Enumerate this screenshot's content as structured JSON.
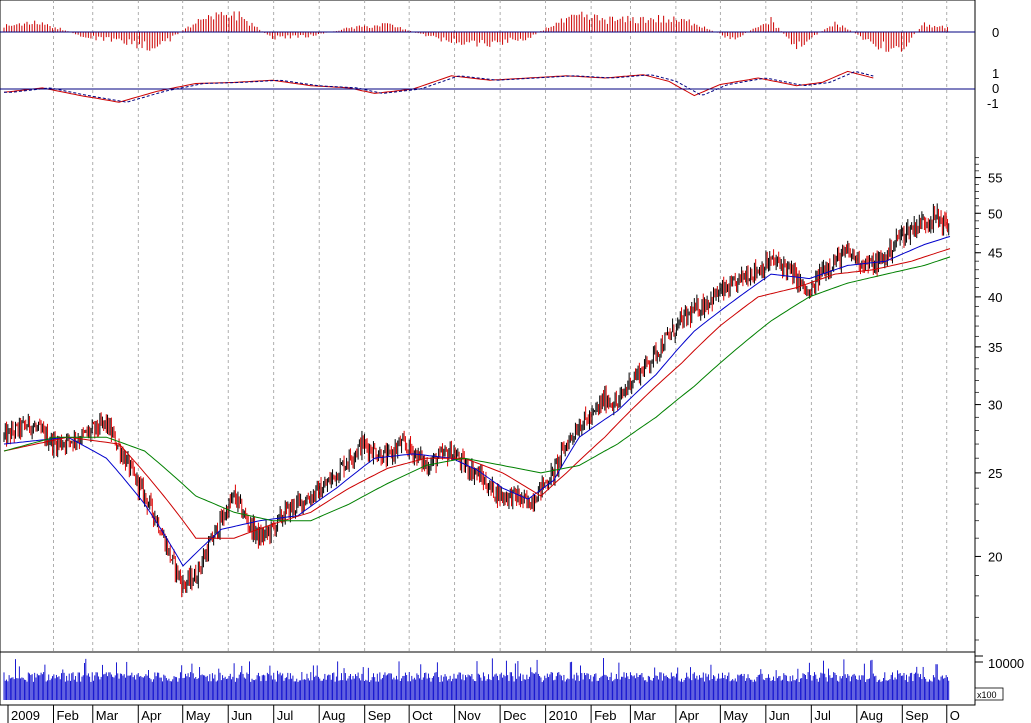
{
  "chart_data": [
    {
      "id": "price",
      "type": "candlestick",
      "ylabel": "",
      "yscale": "log",
      "ylim": [
        16,
        60
      ],
      "yticks": [
        20,
        25,
        30,
        35,
        40,
        45,
        50,
        55
      ],
      "x_labels": [
        "2009",
        "Feb",
        "Mar",
        "Apr",
        "May",
        "Jun",
        "Jul",
        "Aug",
        "Sep",
        "Oct",
        "Nov",
        "Dec",
        "2010",
        "Feb",
        "Mar",
        "Apr",
        "May",
        "Jun",
        "Jul",
        "Aug",
        "Sep",
        "O"
      ],
      "close_path": [
        [
          0,
          27.5
        ],
        [
          4,
          28.5
        ],
        [
          8,
          27.0
        ],
        [
          12,
          27.5
        ],
        [
          16,
          28.5
        ],
        [
          20,
          25.0
        ],
        [
          24,
          22.0
        ],
        [
          26,
          20.0
        ],
        [
          28,
          18.5
        ],
        [
          30,
          19.0
        ],
        [
          32,
          20.5
        ],
        [
          34,
          22.0
        ],
        [
          36,
          23.5
        ],
        [
          38,
          22.0
        ],
        [
          40,
          21.0
        ],
        [
          42,
          21.5
        ],
        [
          44,
          22.5
        ],
        [
          46,
          23.0
        ],
        [
          48,
          23.5
        ],
        [
          50,
          24.0
        ],
        [
          52,
          25.0
        ],
        [
          54,
          26.0
        ],
        [
          56,
          27.0
        ],
        [
          58,
          26.5
        ],
        [
          60,
          26.0
        ],
        [
          62,
          27.0
        ],
        [
          64,
          26.5
        ],
        [
          66,
          25.5
        ],
        [
          68,
          26.0
        ],
        [
          70,
          26.5
        ],
        [
          72,
          25.5
        ],
        [
          74,
          25.0
        ],
        [
          76,
          24.0
        ],
        [
          78,
          23.5
        ],
        [
          80,
          23.5
        ],
        [
          82,
          23.0
        ],
        [
          84,
          24.0
        ],
        [
          86,
          25.0
        ],
        [
          88,
          27.0
        ],
        [
          90,
          28.5
        ],
        [
          92,
          29.0
        ],
        [
          94,
          30.5
        ],
        [
          96,
          30.0
        ],
        [
          98,
          32.0
        ],
        [
          100,
          33.0
        ],
        [
          102,
          34.5
        ],
        [
          104,
          36.0
        ],
        [
          106,
          37.5
        ],
        [
          108,
          38.5
        ],
        [
          110,
          39.5
        ],
        [
          112,
          40.5
        ],
        [
          114,
          41.0
        ],
        [
          116,
          42.5
        ],
        [
          118,
          43.0
        ],
        [
          120,
          44.0
        ],
        [
          122,
          43.5
        ],
        [
          124,
          42.0
        ],
        [
          126,
          40.0
        ],
        [
          128,
          43.0
        ],
        [
          130,
          44.0
        ],
        [
          132,
          45.0
        ],
        [
          134,
          44.0
        ],
        [
          136,
          43.5
        ],
        [
          138,
          44.5
        ],
        [
          140,
          47.0
        ],
        [
          142,
          48.0
        ],
        [
          144,
          49.0
        ],
        [
          146,
          49.5
        ],
        [
          148,
          48.0
        ]
      ],
      "n_weeks": 148,
      "moving_averages": [
        {
          "color": "#0000cc",
          "points": [
            [
              0,
              27.0
            ],
            [
              10,
              27.5
            ],
            [
              16,
              26.0
            ],
            [
              22,
              23.0
            ],
            [
              28,
              19.5
            ],
            [
              34,
              21.5
            ],
            [
              40,
              22.0
            ],
            [
              46,
              22.3
            ],
            [
              52,
              24.0
            ],
            [
              58,
              26.0
            ],
            [
              64,
              26.3
            ],
            [
              70,
              26.0
            ],
            [
              74,
              25.2
            ],
            [
              78,
              24.0
            ],
            [
              82,
              23.3
            ],
            [
              86,
              24.5
            ],
            [
              90,
              27.5
            ],
            [
              96,
              29.5
            ],
            [
              102,
              32.5
            ],
            [
              108,
              36.5
            ],
            [
              114,
              39.5
            ],
            [
              120,
              42.5
            ],
            [
              126,
              42.0
            ],
            [
              132,
              43.5
            ],
            [
              138,
              44.0
            ],
            [
              144,
              46.0
            ],
            [
              148,
              47.0
            ]
          ]
        },
        {
          "color": "#cc0000",
          "points": [
            [
              0,
              26.5
            ],
            [
              10,
              27.5
            ],
            [
              18,
              27.0
            ],
            [
              24,
              24.0
            ],
            [
              30,
              21.0
            ],
            [
              36,
              21.0
            ],
            [
              42,
              21.8
            ],
            [
              48,
              22.5
            ],
            [
              54,
              24.0
            ],
            [
              60,
              25.3
            ],
            [
              66,
              26.0
            ],
            [
              72,
              26.0
            ],
            [
              78,
              25.0
            ],
            [
              84,
              23.5
            ],
            [
              88,
              25.0
            ],
            [
              94,
              27.5
            ],
            [
              100,
              30.5
            ],
            [
              106,
              33.5
            ],
            [
              112,
              37.0
            ],
            [
              118,
              40.0
            ],
            [
              124,
              41.0
            ],
            [
              130,
              42.5
            ],
            [
              136,
              43.0
            ],
            [
              142,
              44.0
            ],
            [
              146,
              45.0
            ],
            [
              148,
              45.5
            ]
          ]
        },
        {
          "color": "#008000",
          "points": [
            [
              0,
              26.5
            ],
            [
              8,
              27.5
            ],
            [
              16,
              27.5
            ],
            [
              22,
              26.5
            ],
            [
              30,
              23.5
            ],
            [
              36,
              22.5
            ],
            [
              42,
              22.0
            ],
            [
              48,
              22.0
            ],
            [
              54,
              23.0
            ],
            [
              60,
              24.3
            ],
            [
              66,
              25.5
            ],
            [
              72,
              26.0
            ],
            [
              78,
              25.5
            ],
            [
              84,
              25.0
            ],
            [
              90,
              25.5
            ],
            [
              96,
              27.0
            ],
            [
              102,
              29.0
            ],
            [
              108,
              31.5
            ],
            [
              114,
              34.5
            ],
            [
              120,
              37.5
            ],
            [
              126,
              40.0
            ],
            [
              132,
              41.5
            ],
            [
              138,
              42.5
            ],
            [
              144,
              43.5
            ],
            [
              148,
              44.5
            ]
          ]
        }
      ]
    },
    {
      "id": "oscillator-top",
      "type": "bar",
      "zero_label": "0",
      "values_path": [
        [
          0,
          3
        ],
        [
          6,
          5
        ],
        [
          12,
          -2
        ],
        [
          18,
          -5
        ],
        [
          24,
          -8
        ],
        [
          30,
          5
        ],
        [
          36,
          10
        ],
        [
          42,
          -3
        ],
        [
          48,
          -2
        ],
        [
          54,
          2
        ],
        [
          60,
          4
        ],
        [
          64,
          0
        ],
        [
          70,
          -5
        ],
        [
          76,
          -6
        ],
        [
          82,
          -3
        ],
        [
          86,
          4
        ],
        [
          90,
          8
        ],
        [
          96,
          6
        ],
        [
          102,
          7
        ],
        [
          108,
          5
        ],
        [
          114,
          -4
        ],
        [
          120,
          6
        ],
        [
          124,
          -8
        ],
        [
          130,
          5
        ],
        [
          136,
          -6
        ],
        [
          140,
          -10
        ],
        [
          144,
          4
        ],
        [
          148,
          2
        ]
      ]
    },
    {
      "id": "oscillator-mid",
      "type": "line",
      "tick_labels": [
        "1",
        "0",
        "-1"
      ],
      "values_path": [
        [
          0,
          -0.3
        ],
        [
          6,
          0.1
        ],
        [
          12,
          -0.6
        ],
        [
          18,
          -1.2
        ],
        [
          24,
          -0.2
        ],
        [
          30,
          0.5
        ],
        [
          36,
          0.6
        ],
        [
          42,
          0.8
        ],
        [
          48,
          0.3
        ],
        [
          54,
          0.1
        ],
        [
          58,
          -0.4
        ],
        [
          64,
          0.0
        ],
        [
          70,
          1.2
        ],
        [
          76,
          0.8
        ],
        [
          82,
          1.0
        ],
        [
          88,
          1.2
        ],
        [
          94,
          1.0
        ],
        [
          100,
          1.3
        ],
        [
          104,
          0.7
        ],
        [
          108,
          -0.6
        ],
        [
          112,
          0.4
        ],
        [
          118,
          1.0
        ],
        [
          124,
          0.3
        ],
        [
          128,
          0.6
        ],
        [
          132,
          1.6
        ],
        [
          136,
          1.0
        ]
      ]
    },
    {
      "id": "volume",
      "type": "bar",
      "tick_label": "10000",
      "multiplier_label": "x100",
      "ylim": [
        0,
        11000
      ]
    }
  ]
}
